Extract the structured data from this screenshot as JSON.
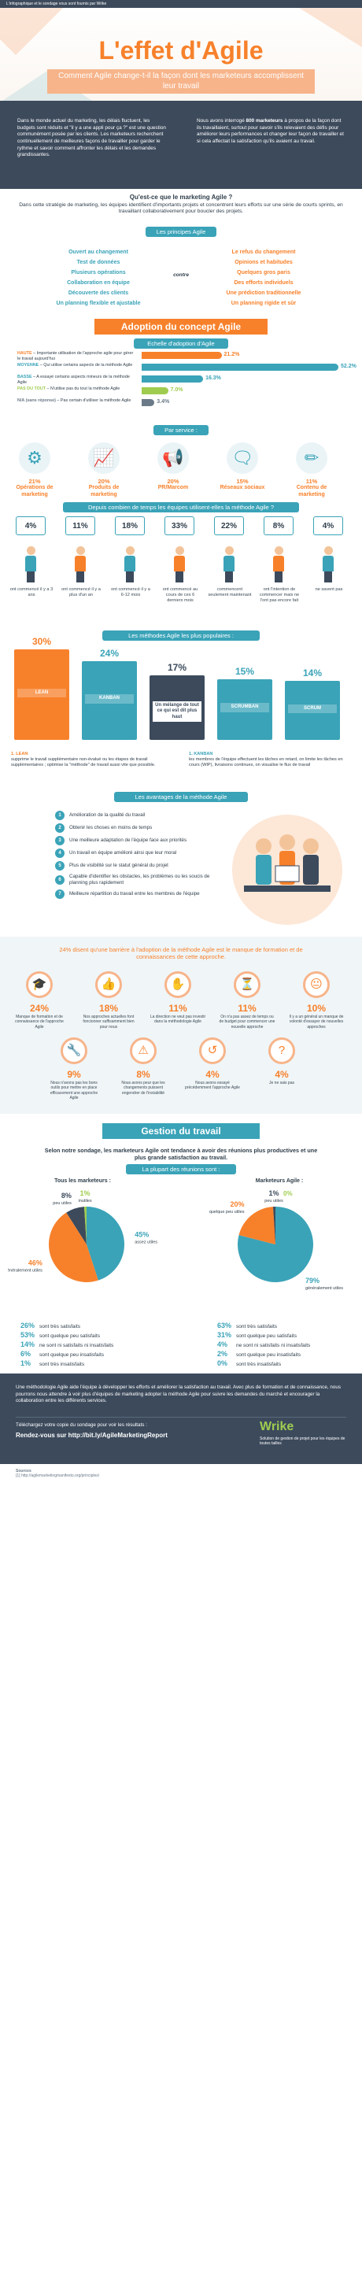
{
  "topbar": {
    "text": "L'infographique et le sondage vous sont fournis par Wrike"
  },
  "hero": {
    "title": "L'effet d'Agile",
    "subtitle": "Comment Agile change-t-il la façon dont les marketeurs accomplissent leur travail"
  },
  "intro": {
    "left": "Dans le monde actuel du marketing, les délais fluctuent, les budgets sont réduits et \"il y a une appli pour ça ?\" est une question communément posée par les clients. Les marketeurs recherchent continuellement de meilleures façons de travailler pour garder le rythme et savoir comment affronter les délais et les demandes grandissantes.",
    "right_pre": "Nous avons interrogé ",
    "right_bold": "800 marketeurs",
    "right_post": " à propos de la façon dont ils travaillaient, surtout pour savoir s'ils relevaient des défis pour améliorer leurs performances et changer leur façon de travailler et si cela affectait la satisfaction qu'ils avaient au travail."
  },
  "what": {
    "heading": "Qu'est-ce que le marketing Agile ?",
    "body": "Dans cette stratégie de marketing, les équipes identifient d'importants projets et concentrent leurs efforts sur une série de courts sprints, en travaillant collaborativement pour boucler des projets."
  },
  "principles": {
    "title": "Les principes Agile",
    "contra": "contre",
    "left": [
      "Ouvert au changement",
      "Test de données",
      "Plusieurs opérations",
      "Collaboration en équipe",
      "Découverte des clients",
      "Un planning flexible et ajustable"
    ],
    "right": [
      "Le refus du changement",
      "Opinions et habitudes",
      "Quelques gros paris",
      "Des efforts individuels",
      "Une prédiction traditionnelle",
      "Un planning rigide et sûr"
    ]
  },
  "adoption": {
    "banner": "Adoption du concept Agile",
    "scale_title": "Echelle d'adoption d'Agile",
    "rows": [
      {
        "label": "HAUTE",
        "desc": " – Importante utilisation de l'approche agile pour gérer le travail aujourd'hui",
        "value": 21.2,
        "pct": "21.2%",
        "color": "#f7812b"
      },
      {
        "label": "MOYENNE",
        "desc": " – Qui utilise certains aspects de la méthode Agile",
        "value": 52.2,
        "pct": "52.2%",
        "color": "#3aa3b8"
      },
      {
        "label": "BASSE",
        "desc": " – A essayé certains aspects mineurs de la méthode Agile",
        "value": 16.3,
        "pct": "16.3%",
        "color": "#3aa3b8"
      },
      {
        "label": "PAS DU TOUT",
        "desc": " – N'utilise pas du tout la méthode Agile",
        "value": 7.0,
        "pct": "7.0%",
        "color": "#9fcc4f"
      },
      {
        "label": "N/A (sans réponse)",
        "desc": " – Pas certain d'utiliser la méthode Agile",
        "value": 3.4,
        "pct": "3.4%",
        "color": "#6b7a88"
      }
    ]
  },
  "service": {
    "title": "Par service :",
    "items": [
      {
        "pct": "21%",
        "label": "Opérations de marketing",
        "icon": "gears-icon",
        "glyph": "⚙"
      },
      {
        "pct": "20%",
        "label": "Produits de marketing",
        "icon": "growth-chart-icon",
        "glyph": "📈"
      },
      {
        "pct": "20%",
        "label": "PR/Marcom",
        "icon": "megaphone-icon",
        "glyph": "📢"
      },
      {
        "pct": "15%",
        "label": "Réseaux sociaux",
        "icon": "social-network-icon",
        "glyph": "🗨"
      },
      {
        "pct": "11%",
        "label": "Contenu de marketing",
        "icon": "pencil-icon",
        "glyph": "✏"
      }
    ]
  },
  "duration": {
    "title": "Depuis combien de temps les équipes utilisent-elles la méthode Agile ?",
    "items": [
      {
        "pct": "4%",
        "label": "ont commencé il y a 3 ans",
        "shirt": "#3aa3b8"
      },
      {
        "pct": "11%",
        "label": "ont commencé il y a plus d'un an",
        "shirt": "#f7812b"
      },
      {
        "pct": "18%",
        "label": "ont commencé il y a 6-12 mois",
        "shirt": "#3aa3b8"
      },
      {
        "pct": "33%",
        "label": "ont commencé au cours de ces 6 derniers mois",
        "shirt": "#f7812b"
      },
      {
        "pct": "22%",
        "label": "commencent seulement maintenant",
        "shirt": "#3aa3b8"
      },
      {
        "pct": "8%",
        "label": "ont l'intention de commencer mais ne l'ont pas encore fait",
        "shirt": "#f7812b"
      },
      {
        "pct": "4%",
        "label": "ne savent pas",
        "shirt": "#3aa3b8"
      }
    ]
  },
  "methods": {
    "title": "Les méthodes Agile les plus populaires :",
    "books": [
      {
        "pct": "30%",
        "name": "LEAN",
        "color": "#f7812b"
      },
      {
        "pct": "24%",
        "name": "KANBAN",
        "color": "#3aa3b8"
      },
      {
        "pct": "17%",
        "name": "Un mélange de tout ce qui est dit plus haut",
        "color": "#3c4a5c"
      },
      {
        "pct": "15%",
        "name": "SCRUMBAN",
        "color": "#3aa3b8"
      },
      {
        "pct": "14%",
        "name": "SCRUM",
        "color": "#3aa3b8"
      }
    ],
    "lean_title": "1. LEAN",
    "lean_desc": "supprime le travail supplémentaire non-évalué ou les étapes de travail supplémentaires ; optimise la \"méthode\" de travail aussi vite que possible.",
    "kanban_title": "1. KANBAN",
    "kanban_desc": "les membres de l'équipe effectuent les tâches en retard, on limite les tâches en cours (WIP), livraisons continues, on visualise le flux de travail"
  },
  "benefits": {
    "title": "Les avantages de la méthode Agile",
    "items": [
      "Amélioration de la qualité du travail",
      "Obtenir les choses en moins de temps",
      "Une meilleure adaptation de l'équipe face aux priorités",
      "Un travail en équipe amélioré ainsi que leur moral",
      "Plus de visibilité sur le statut général du projet",
      "Capable d'identifier les obstacles, les problèmes ou les soucis de planning plus rapidement",
      "Meilleure répartition du travail entre les membres de l'équipe"
    ]
  },
  "barriers": {
    "title": "24% disent qu'une barrière à l'adoption de la méthode Agile est le manque de formation et de connaissances de cette approche.",
    "row1": [
      {
        "pct": "24%",
        "label": "Manque de formation et de connaissance de l'approche Agile",
        "glyph": "🎓",
        "icon": "graduation-cap-icon"
      },
      {
        "pct": "18%",
        "label": "Nos approches actuelles font foncionner suffisamment bien pour nous",
        "glyph": "👍",
        "icon": "thumbs-up-icon"
      },
      {
        "pct": "11%",
        "label": "La direction ne veut pas investir dans la méthodologie Agile",
        "glyph": "✋",
        "icon": "stop-hand-icon"
      },
      {
        "pct": "11%",
        "label": "On n'a pas assez de temps ou de budget pour commencer une nouvelle approche",
        "glyph": "⏳",
        "icon": "hourglass-icon"
      },
      {
        "pct": "10%",
        "label": "Il y a un général un manque de volonté d'essayer de nouvelles approches",
        "glyph": "😐",
        "icon": "neutral-face-icon"
      }
    ],
    "row2": [
      {
        "pct": "9%",
        "label": "Nous n'avons pas les bons outils pour mettre en place efficacement une approche Agile",
        "glyph": "🔧",
        "icon": "wrench-icon"
      },
      {
        "pct": "8%",
        "label": "Nous avons peur que les changements puissent engendrer de l'instabilité",
        "glyph": "⚠",
        "icon": "warning-icon"
      },
      {
        "pct": "4%",
        "label": "Nous avons essayé précédemment l'approche Agile",
        "glyph": "↺",
        "icon": "retry-icon"
      },
      {
        "pct": "4%",
        "label": "Je ne sais pas",
        "glyph": "?",
        "icon": "question-icon"
      }
    ]
  },
  "gestion": {
    "banner": "Gestion du travail",
    "intro": "Selon notre sondage, les marketeurs Agile ont tendance à avoir des réunions plus productives et une plus grande satisfaction au travail.",
    "meetings": "La plupart des réunions sont :",
    "all_title": "Tous les marketeurs :",
    "agile_title": "Marketeurs Agile :",
    "all_slices": [
      {
        "name": "assez utiles",
        "value": 45,
        "pct": "45%",
        "color": "#3aa3b8"
      },
      {
        "name": "généralement utiles",
        "value": 46,
        "pct": "46%",
        "color": "#f7812b"
      },
      {
        "name": "peu utiles",
        "value": 8,
        "pct": "8%",
        "color": "#3c4a5c"
      },
      {
        "name": "inutiles",
        "value": 1,
        "pct": "1%",
        "color": "#9fcc4f"
      }
    ],
    "agile_slices": [
      {
        "name": "généralement utiles",
        "value": 79,
        "pct": "79%",
        "color": "#3aa3b8"
      },
      {
        "name": "quelque peu utiles",
        "value": 20,
        "pct": "20%",
        "color": "#f7812b"
      },
      {
        "name": "peu utiles",
        "value": 1,
        "pct": "1%",
        "color": "#3c4a5c"
      },
      {
        "name": "inutiles",
        "value": 0,
        "pct": "0%",
        "color": "#9fcc4f"
      }
    ],
    "all_stats": [
      {
        "pct": "26%",
        "label": "sont très satisfaits"
      },
      {
        "pct": "53%",
        "label": "sont quelque peu satisfaits"
      },
      {
        "pct": "14%",
        "label": "ne sont ni satisfaits ni insatisfaits"
      },
      {
        "pct": "6%",
        "label": "sont quelque peu insatisfaits"
      },
      {
        "pct": "1%",
        "label": "sont très insatisfaits"
      }
    ],
    "agile_stats": [
      {
        "pct": "63%",
        "label": "sont très satisfaits"
      },
      {
        "pct": "31%",
        "label": "sont quelque peu satisfaits"
      },
      {
        "pct": "4%",
        "label": "ne sont ni satisfaits ni insatisfaits"
      },
      {
        "pct": "2%",
        "label": "sont quelque peu insatisfaits"
      },
      {
        "pct": "0%",
        "label": "sont très insatisfaits"
      }
    ]
  },
  "footer": {
    "text": "Une méthodologie Agile aide l'équipe à développer les efforts et améliorer la satisfaction au travail. Avec plus de formation et de connaissance, nous pourrons nous attendre à voir plus d'équipes de marketing adopter la méthode Agile pour suivre les demandes du marché et encourager la collaboration entre les différents services.",
    "cta": "Téléchargez votre copie du sondage pour voir les résultats :",
    "link": "Rendez-vous sur http://bit.ly/AgileMarketingReport",
    "brand": "Wrike",
    "brand_sub": "Solution de gestion de projet pour les équipes de toutes tailles",
    "sources_label": "Sources",
    "source": "[1] http://agilemarketingmanifesto.org/principles/"
  }
}
